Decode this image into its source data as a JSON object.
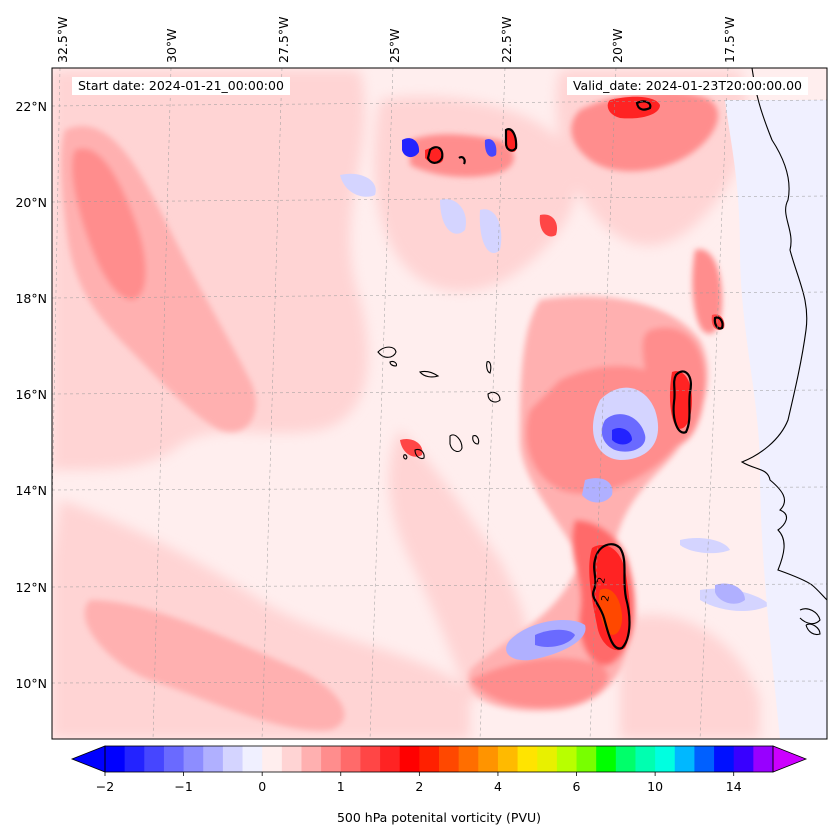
{
  "chart_data": {
    "type": "filled-contour map",
    "projection": "geographic, Atlantic off West Africa (Cape Verde region)",
    "annotations": {
      "start": "Start date: 2024-01-21_00:00:00",
      "valid": "Valid_date: 2024-01-23T20:00:00.00"
    },
    "lon_ticks": [
      "32.5°W",
      "30°W",
      "27.5°W",
      "25°W",
      "22.5°W",
      "20°W",
      "17.5°W"
    ],
    "lon_values": [
      -32.5,
      -30,
      -27.5,
      -25,
      -22.5,
      -20,
      -17.5
    ],
    "lat_ticks": [
      "22°N",
      "20°N",
      "18°N",
      "16°N",
      "14°N",
      "12°N",
      "10°N"
    ],
    "lat_values": [
      22,
      20,
      18,
      16,
      14,
      12,
      10
    ],
    "lat_range": [
      8.9,
      22.7
    ],
    "contour_label": "2",
    "contour_level_pvu": 2,
    "colorbar": {
      "label": "500 hPa potenital vorticity (PVU)",
      "tick_labels": [
        "−2",
        "−1",
        "0",
        "1",
        "2",
        "4",
        "6",
        "10",
        "14"
      ],
      "tick_values": [
        -2,
        -1,
        0,
        1,
        2,
        4,
        6,
        10,
        14
      ],
      "levels": [
        -2.0,
        -1.75,
        -1.5,
        -1.25,
        -1.0,
        -0.75,
        -0.5,
        -0.25,
        0.0,
        0.25,
        0.5,
        0.75,
        1.0,
        1.25,
        1.5,
        1.75,
        2.0,
        2.5,
        3.0,
        3.5,
        4.0,
        4.5,
        5.0,
        5.5,
        6.0,
        7.0,
        8.0,
        9.0,
        10.0,
        11.0,
        12.0,
        13.0,
        14.0,
        15.0,
        16.0
      ],
      "colors": [
        "#0000ff",
        "#2323ff",
        "#4646ff",
        "#6a6aff",
        "#8d8dff",
        "#b0b0ff",
        "#d4d4ff",
        "#f0f0ff",
        "#ffeeee",
        "#ffd4d4",
        "#ffb0b0",
        "#ff8d8d",
        "#ff6a6a",
        "#ff4646",
        "#ff2323",
        "#ff0000",
        "#ff2000",
        "#ff4800",
        "#ff6e00",
        "#ff9400",
        "#ffba00",
        "#ffe400",
        "#e8f000",
        "#b8ff00",
        "#78ff00",
        "#00ff00",
        "#00ff6a",
        "#00ffb0",
        "#00ffe0",
        "#00b8ff",
        "#0060ff",
        "#0010ff",
        "#3800ff",
        "#9800ff"
      ],
      "extend": "both",
      "under_color": "#0000ff",
      "over_color": "#cc00ff"
    },
    "features": [
      {
        "name": "pv-band-west",
        "pvu": 0.6
      },
      {
        "name": "pv-core-south",
        "pvu": 2.6
      },
      {
        "name": "pv-core-east",
        "pvu": 2.3
      },
      {
        "name": "pv-core-north",
        "pvu": 2.2
      },
      {
        "name": "negative-pv-anomaly",
        "pvu": -1.6
      }
    ]
  }
}
